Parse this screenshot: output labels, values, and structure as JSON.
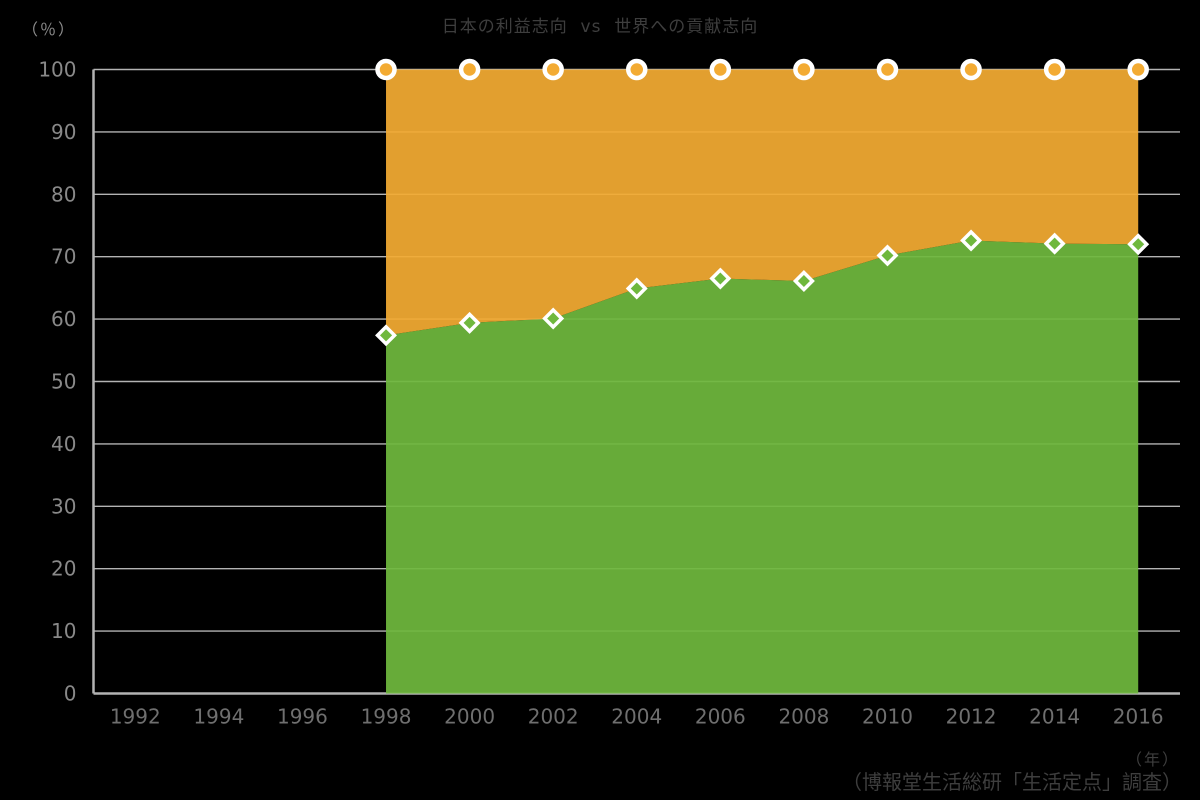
{
  "title": "日本の利益志向  vs  世界への貢献志向",
  "labels": {
    "y_unit": "（％）",
    "x_unit": "（年）",
    "source": "（博報堂生活総研「生活定点」調査）"
  },
  "colors": {
    "background": "#000000",
    "grid": "#b3b3b3",
    "axis_text": "#898989",
    "x_axis_text": "#6f6f6f",
    "annotation_text": "#3e3e3e",
    "marker_ring": "#ffffff",
    "green": "#6fb83d",
    "orange": "#f3ab33"
  },
  "chart_data": {
    "type": "area",
    "stacked": true,
    "title": "日本の利益志向  vs  世界への貢献志向",
    "xlabel": "（年）",
    "ylabel": "（％）",
    "x_axis_ticks": [
      1992,
      1994,
      1996,
      1998,
      2000,
      2002,
      2004,
      2006,
      2008,
      2010,
      2012,
      2014,
      2016
    ],
    "x": [
      1998,
      2000,
      2002,
      2004,
      2006,
      2008,
      2010,
      2012,
      2014,
      2016
    ],
    "series": [
      {
        "name": "bottom-green-area",
        "color": "#6fb83d",
        "marker": "diamond",
        "values": [
          57.4,
          59.4,
          60.1,
          64.9,
          66.5,
          66.1,
          70.2,
          72.6,
          72.1,
          72.0
        ]
      },
      {
        "name": "top-orange-area",
        "color": "#f3ab33",
        "marker": "circle",
        "values": [
          42.6,
          40.6,
          39.9,
          35.1,
          33.5,
          33.9,
          29.8,
          27.4,
          27.9,
          28.0
        ]
      }
    ],
    "stack_total": 100,
    "ylim": [
      0,
      100
    ],
    "yticks": [
      0,
      10,
      20,
      30,
      40,
      50,
      60,
      70,
      80,
      90,
      100
    ],
    "grid": "horizontal",
    "legend": "none"
  }
}
